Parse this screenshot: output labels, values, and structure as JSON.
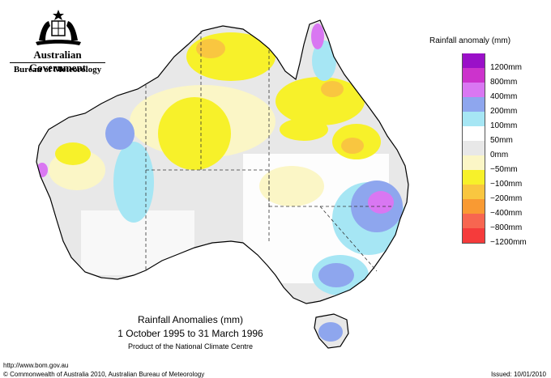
{
  "header": {
    "government": "Australian Government",
    "bureau": "Bureau of Meteorology"
  },
  "legend": {
    "title": "Rainfall anomaly (mm)",
    "items": [
      {
        "label": "1200mm",
        "color": "#9a10c8"
      },
      {
        "label": "800mm",
        "color": "#cc33cc"
      },
      {
        "label": "400mm",
        "color": "#d977f2"
      },
      {
        "label": "200mm",
        "color": "#8ea6ee"
      },
      {
        "label": "100mm",
        "color": "#a6e6f4"
      },
      {
        "label": "50mm",
        "color": "#ffffff"
      },
      {
        "label": "0mm",
        "color": "#e8e8e8"
      },
      {
        "label": "−50mm",
        "color": "#fbf6c6"
      },
      {
        "label": "−100mm",
        "color": "#f7f12a"
      },
      {
        "label": "−200mm",
        "color": "#f9c640"
      },
      {
        "label": "−400mm",
        "color": "#f99a33"
      },
      {
        "label": "−800mm",
        "color": "#f76650"
      },
      {
        "label": "−1200mm",
        "color": "#f53b3b"
      }
    ]
  },
  "caption": {
    "title": "Rainfall Anomalies (mm)",
    "period": "1 October 1995 to 31 March 1996",
    "product": "Product of the National Climate Centre"
  },
  "footer": {
    "url": "http://www.bom.gov.au",
    "copyright": "© Commonwealth of Australia 2010, Australian Bureau of Meteorology",
    "issued": "Issued: 10/01/2010"
  },
  "icons": {
    "crest": "coat-of-arms-icon"
  }
}
